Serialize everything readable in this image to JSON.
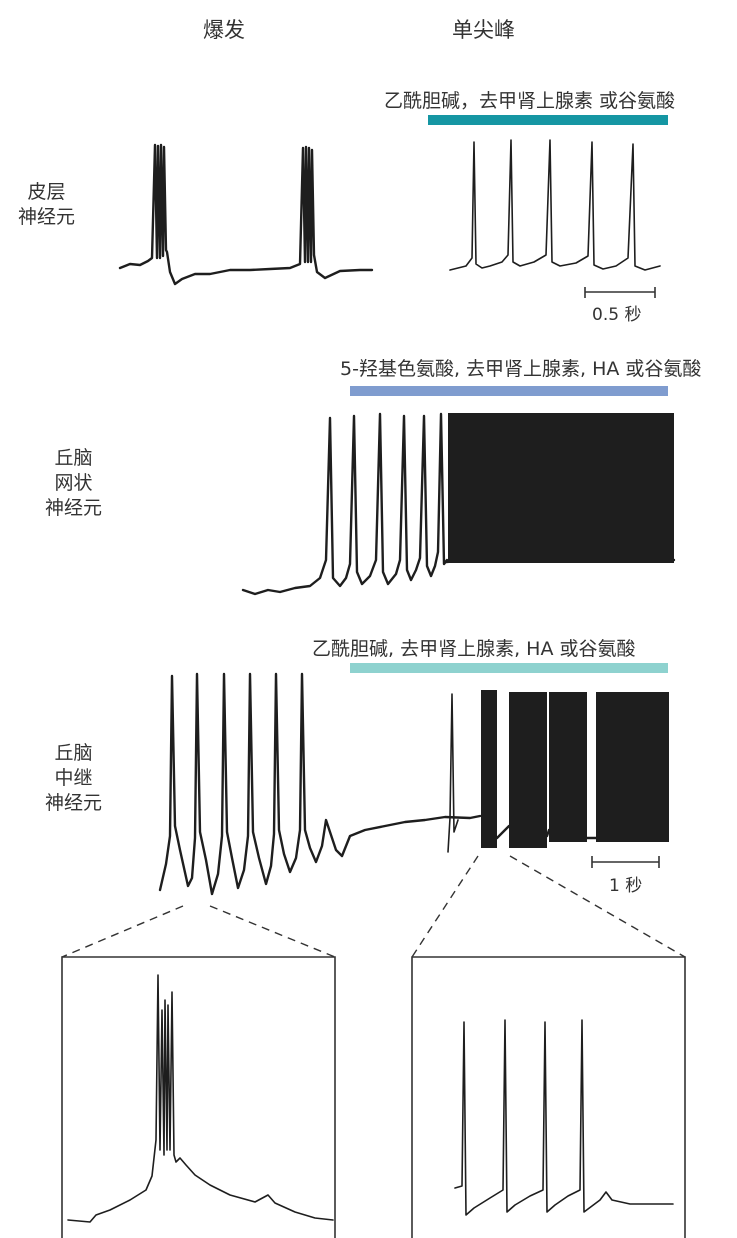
{
  "headers": {
    "burst": "爆发",
    "single": "单尖峰"
  },
  "rows": [
    {
      "label_lines": [
        "皮层",
        "神经元"
      ],
      "drug_label": "乙酰胆碱，去甲肾上腺素 或谷氨酸",
      "bar_color": "#1596a3",
      "scale_label": "0.5 秒"
    },
    {
      "label_lines": [
        "丘脑",
        "网状",
        "神经元"
      ],
      "drug_label": "5-羟基色氨酸, 去甲肾上腺素, HA 或谷氨酸",
      "bar_color": "#7f9ccf"
    },
    {
      "label_lines": [
        "丘脑",
        "中继",
        "神经元"
      ],
      "drug_label": "乙酰胆碱, 去甲肾上腺素, HA 或谷氨酸",
      "bar_color": "#8ed2cf",
      "scale_label": "1 秒"
    }
  ]
}
